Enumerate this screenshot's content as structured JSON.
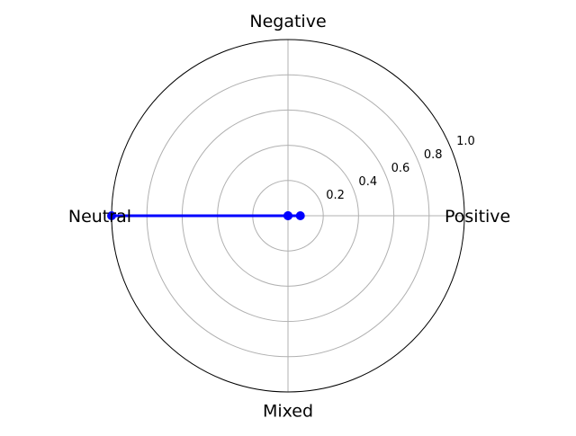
{
  "chart_data": {
    "type": "radar",
    "categories": [
      "Positive",
      "Negative",
      "Neutral",
      "Mixed"
    ],
    "series": [
      {
        "values": [
          0.07,
          0.0,
          1.0,
          0.0
        ]
      }
    ],
    "rlim": [
      0,
      1.0
    ],
    "rticks": [
      0.2,
      0.4,
      0.6,
      0.8,
      1.0
    ],
    "rtick_labels": [
      "0.2",
      "0.4",
      "0.6",
      "0.8",
      "1.0"
    ],
    "grid": true,
    "colors": {
      "series": "#0000ff",
      "grid": "#b0b0b0",
      "frame": "#000000"
    }
  }
}
